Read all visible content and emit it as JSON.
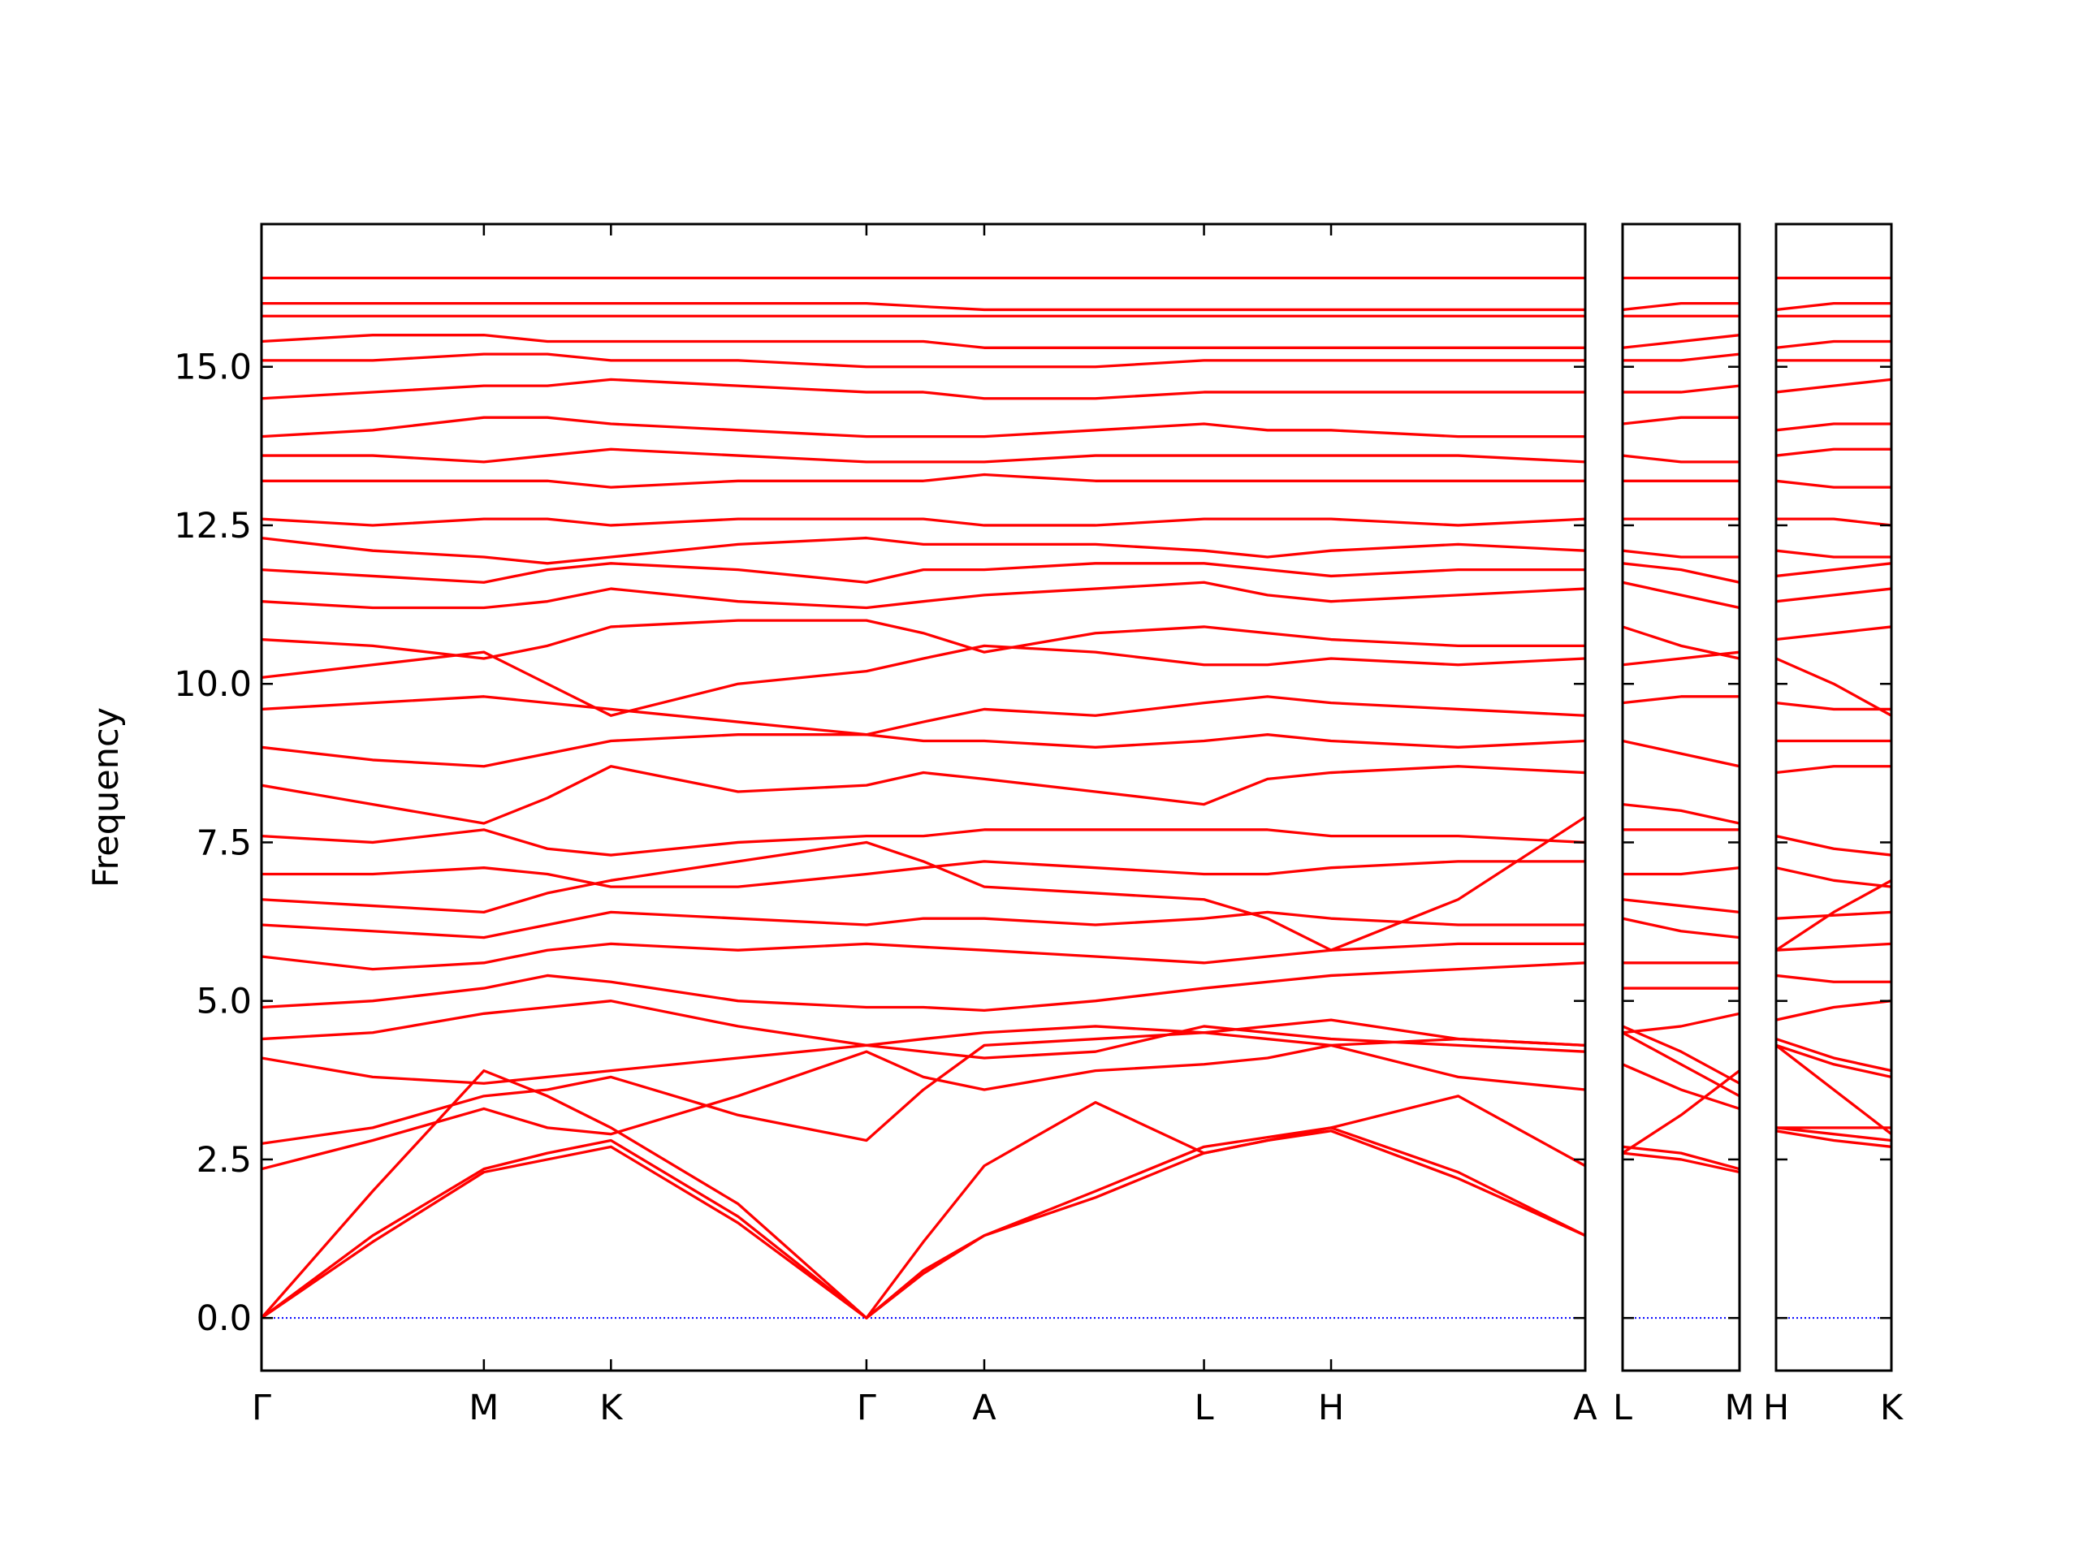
{
  "chart_data": [
    {
      "type": "line",
      "ylabel": "Frequency",
      "line_color": "#ff0000",
      "hline": 0,
      "hline_color": "#0000ff",
      "x": [
        0,
        0.84,
        1.68,
        2.16,
        2.64,
        3.6,
        4.57,
        5.0,
        5.46,
        6.3,
        7.12,
        7.6,
        8.08,
        9.04,
        10.0
      ],
      "xlim": [
        0,
        10.0
      ],
      "xticks": [
        {
          "value": 0,
          "label": "Γ"
        },
        {
          "value": 1.68,
          "label": "M"
        },
        {
          "value": 2.64,
          "label": "K"
        },
        {
          "value": 4.57,
          "label": "Γ"
        },
        {
          "value": 5.46,
          "label": "A"
        },
        {
          "value": 7.12,
          "label": "L"
        },
        {
          "value": 8.08,
          "label": "H"
        },
        {
          "value": 10.0,
          "label": "A"
        }
      ],
      "ylim": [
        -0.83,
        17.25
      ],
      "yticks": [
        {
          "value": 0,
          "label": "0.0"
        },
        {
          "value": 2.5,
          "label": "2.5"
        },
        {
          "value": 5,
          "label": "5.0"
        },
        {
          "value": 7.5,
          "label": "7.5"
        },
        {
          "value": 10,
          "label": "10.0"
        },
        {
          "value": 12.5,
          "label": "12.5"
        },
        {
          "value": 15,
          "label": "15.0"
        }
      ],
      "series": [
        {
          "values": [
            0,
            1.2,
            2.3,
            2.5,
            2.7,
            1.5,
            0,
            0.7,
            1.3,
            1.9,
            2.6,
            2.8,
            2.95,
            2.2,
            1.3
          ]
        },
        {
          "values": [
            0,
            1.3,
            2.35,
            2.6,
            2.8,
            1.6,
            0,
            0.75,
            1.3,
            2.0,
            2.7,
            2.85,
            3.0,
            2.3,
            1.3
          ]
        },
        {
          "values": [
            0,
            2.0,
            3.9,
            3.5,
            3.0,
            1.8,
            0,
            1.2,
            2.4,
            3.4,
            2.6,
            2.8,
            3.0,
            3.5,
            2.4
          ]
        },
        {
          "values": [
            2.35,
            2.8,
            3.3,
            3.0,
            2.9,
            3.5,
            4.2,
            3.8,
            3.6,
            3.9,
            4.0,
            4.1,
            4.3,
            4.4,
            4.3
          ]
        },
        {
          "values": [
            2.75,
            3.0,
            3.5,
            3.6,
            3.8,
            3.2,
            2.8,
            3.6,
            4.3,
            4.4,
            4.5,
            4.4,
            4.3,
            3.8,
            3.6
          ]
        },
        {
          "values": [
            4.1,
            3.8,
            3.7,
            3.8,
            3.9,
            4.1,
            4.3,
            4.2,
            4.1,
            4.2,
            4.6,
            4.5,
            4.4,
            4.3,
            4.2
          ]
        },
        {
          "values": [
            4.4,
            4.5,
            4.8,
            4.9,
            5.0,
            4.6,
            4.3,
            4.4,
            4.5,
            4.6,
            4.5,
            4.6,
            4.7,
            4.4,
            4.3
          ]
        },
        {
          "values": [
            4.9,
            5.0,
            5.2,
            5.4,
            5.3,
            5.0,
            4.9,
            4.9,
            4.85,
            5.0,
            5.2,
            5.3,
            5.4,
            5.5,
            5.6
          ]
        },
        {
          "values": [
            5.7,
            5.5,
            5.6,
            5.8,
            5.9,
            5.8,
            5.9,
            5.85,
            5.8,
            5.7,
            5.6,
            5.7,
            5.8,
            5.9,
            5.9
          ]
        },
        {
          "values": [
            6.2,
            6.1,
            6.0,
            6.2,
            6.4,
            6.3,
            6.2,
            6.3,
            6.3,
            6.2,
            6.3,
            6.4,
            6.3,
            6.2,
            6.2
          ]
        },
        {
          "values": [
            6.6,
            6.5,
            6.4,
            6.7,
            6.9,
            7.2,
            7.5,
            7.2,
            6.8,
            6.7,
            6.6,
            6.3,
            5.8,
            6.6,
            7.9
          ]
        },
        {
          "values": [
            7.0,
            7.0,
            7.1,
            7.0,
            6.8,
            6.8,
            7.0,
            7.1,
            7.2,
            7.1,
            7.0,
            7.0,
            7.1,
            7.2,
            7.2
          ]
        },
        {
          "values": [
            7.6,
            7.5,
            7.7,
            7.4,
            7.3,
            7.5,
            7.6,
            7.6,
            7.7,
            7.7,
            7.7,
            7.7,
            7.6,
            7.6,
            7.5
          ]
        },
        {
          "values": [
            8.4,
            8.1,
            7.8,
            8.2,
            8.7,
            8.3,
            8.4,
            8.6,
            8.5,
            8.3,
            8.1,
            8.5,
            8.6,
            8.7,
            8.6
          ]
        },
        {
          "values": [
            9.0,
            8.8,
            8.7,
            8.9,
            9.1,
            9.2,
            9.2,
            9.1,
            9.1,
            9.0,
            9.1,
            9.2,
            9.1,
            9.0,
            9.1
          ]
        },
        {
          "values": [
            9.6,
            9.7,
            9.8,
            9.7,
            9.6,
            9.4,
            9.2,
            9.4,
            9.6,
            9.5,
            9.7,
            9.8,
            9.7,
            9.6,
            9.5
          ]
        },
        {
          "values": [
            10.1,
            10.3,
            10.5,
            10.0,
            9.5,
            10.0,
            10.2,
            10.4,
            10.6,
            10.5,
            10.3,
            10.3,
            10.4,
            10.3,
            10.4
          ]
        },
        {
          "values": [
            10.7,
            10.6,
            10.4,
            10.6,
            10.9,
            11.0,
            11.0,
            10.8,
            10.5,
            10.8,
            10.9,
            10.8,
            10.7,
            10.6,
            10.6
          ]
        },
        {
          "values": [
            11.3,
            11.2,
            11.2,
            11.3,
            11.5,
            11.3,
            11.2,
            11.3,
            11.4,
            11.5,
            11.6,
            11.4,
            11.3,
            11.4,
            11.5
          ]
        },
        {
          "values": [
            11.8,
            11.7,
            11.6,
            11.8,
            11.9,
            11.8,
            11.6,
            11.8,
            11.8,
            11.9,
            11.9,
            11.8,
            11.7,
            11.8,
            11.8
          ]
        },
        {
          "values": [
            12.3,
            12.1,
            12.0,
            11.9,
            12.0,
            12.2,
            12.3,
            12.2,
            12.2,
            12.2,
            12.1,
            12.0,
            12.1,
            12.2,
            12.1
          ]
        },
        {
          "values": [
            12.6,
            12.5,
            12.6,
            12.6,
            12.5,
            12.6,
            12.6,
            12.6,
            12.5,
            12.5,
            12.6,
            12.6,
            12.6,
            12.5,
            12.6
          ]
        },
        {
          "values": [
            13.2,
            13.2,
            13.2,
            13.2,
            13.1,
            13.2,
            13.2,
            13.2,
            13.3,
            13.2,
            13.2,
            13.2,
            13.2,
            13.2,
            13.2
          ]
        },
        {
          "values": [
            13.6,
            13.6,
            13.5,
            13.6,
            13.7,
            13.6,
            13.5,
            13.5,
            13.5,
            13.6,
            13.6,
            13.6,
            13.6,
            13.6,
            13.5
          ]
        },
        {
          "values": [
            13.9,
            14.0,
            14.2,
            14.2,
            14.1,
            14.0,
            13.9,
            13.9,
            13.9,
            14.0,
            14.1,
            14.0,
            14.0,
            13.9,
            13.9
          ]
        },
        {
          "values": [
            14.5,
            14.6,
            14.7,
            14.7,
            14.8,
            14.7,
            14.6,
            14.6,
            14.5,
            14.5,
            14.6,
            14.6,
            14.6,
            14.6,
            14.6
          ]
        },
        {
          "values": [
            15.1,
            15.1,
            15.2,
            15.2,
            15.1,
            15.1,
            15.0,
            15.0,
            15.0,
            15.0,
            15.1,
            15.1,
            15.1,
            15.1,
            15.1
          ]
        },
        {
          "values": [
            15.4,
            15.5,
            15.5,
            15.4,
            15.4,
            15.4,
            15.4,
            15.4,
            15.3,
            15.3,
            15.3,
            15.3,
            15.3,
            15.3,
            15.3
          ]
        },
        {
          "values": [
            15.8,
            15.8,
            15.8,
            15.8,
            15.8,
            15.8,
            15.8,
            15.8,
            15.8,
            15.8,
            15.8,
            15.8,
            15.8,
            15.8,
            15.8
          ]
        },
        {
          "values": [
            16.0,
            16.0,
            16.0,
            16.0,
            16.0,
            16.0,
            16.0,
            15.95,
            15.9,
            15.9,
            15.9,
            15.9,
            15.9,
            15.9,
            15.9
          ]
        },
        {
          "values": [
            16.4,
            16.4,
            16.4,
            16.4,
            16.4,
            16.4,
            16.4,
            16.4,
            16.4,
            16.4,
            16.4,
            16.4,
            16.4,
            16.4,
            16.4
          ]
        }
      ]
    },
    {
      "type": "line",
      "line_color": "#ff0000",
      "hline": 0,
      "hline_color": "#0000ff",
      "x": [
        0,
        0.44,
        0.88
      ],
      "xlim": [
        0,
        0.88
      ],
      "xticks": [
        {
          "value": 0,
          "label": "L"
        },
        {
          "value": 0.88,
          "label": "M"
        }
      ],
      "ylim": [
        -0.83,
        17.25
      ],
      "yticks": [
        0,
        2.5,
        5,
        7.5,
        10,
        12.5,
        15
      ],
      "series": [
        {
          "values": [
            2.6,
            2.5,
            2.3
          ]
        },
        {
          "values": [
            2.7,
            2.6,
            2.35
          ]
        },
        {
          "values": [
            2.6,
            3.2,
            3.9
          ]
        },
        {
          "values": [
            4.0,
            3.6,
            3.3
          ]
        },
        {
          "values": [
            4.5,
            4.0,
            3.5
          ]
        },
        {
          "values": [
            4.6,
            4.2,
            3.7
          ]
        },
        {
          "values": [
            4.5,
            4.6,
            4.8
          ]
        },
        {
          "values": [
            5.2,
            5.2,
            5.2
          ]
        },
        {
          "values": [
            5.6,
            5.6,
            5.6
          ]
        },
        {
          "values": [
            6.3,
            6.1,
            6.0
          ]
        },
        {
          "values": [
            6.6,
            6.5,
            6.4
          ]
        },
        {
          "values": [
            7.0,
            7.0,
            7.1
          ]
        },
        {
          "values": [
            7.7,
            7.7,
            7.7
          ]
        },
        {
          "values": [
            8.1,
            8.0,
            7.8
          ]
        },
        {
          "values": [
            9.1,
            8.9,
            8.7
          ]
        },
        {
          "values": [
            9.7,
            9.8,
            9.8
          ]
        },
        {
          "values": [
            10.3,
            10.4,
            10.5
          ]
        },
        {
          "values": [
            10.9,
            10.6,
            10.4
          ]
        },
        {
          "values": [
            11.6,
            11.4,
            11.2
          ]
        },
        {
          "values": [
            11.9,
            11.8,
            11.6
          ]
        },
        {
          "values": [
            12.1,
            12.0,
            12.0
          ]
        },
        {
          "values": [
            12.6,
            12.6,
            12.6
          ]
        },
        {
          "values": [
            13.2,
            13.2,
            13.2
          ]
        },
        {
          "values": [
            13.6,
            13.5,
            13.5
          ]
        },
        {
          "values": [
            14.1,
            14.2,
            14.2
          ]
        },
        {
          "values": [
            14.6,
            14.6,
            14.7
          ]
        },
        {
          "values": [
            15.1,
            15.1,
            15.2
          ]
        },
        {
          "values": [
            15.3,
            15.4,
            15.5
          ]
        },
        {
          "values": [
            15.8,
            15.8,
            15.8
          ]
        },
        {
          "values": [
            15.9,
            16.0,
            16.0
          ]
        },
        {
          "values": [
            16.4,
            16.4,
            16.4
          ]
        }
      ]
    },
    {
      "type": "line",
      "line_color": "#ff0000",
      "hline": 0,
      "hline_color": "#0000ff",
      "x": [
        0,
        0.435,
        0.87
      ],
      "xlim": [
        0,
        0.87
      ],
      "xticks": [
        {
          "value": 0,
          "label": "H"
        },
        {
          "value": 0.87,
          "label": "K"
        }
      ],
      "ylim": [
        -0.83,
        17.25
      ],
      "yticks": [
        0,
        2.5,
        5,
        7.5,
        10,
        12.5,
        15
      ],
      "series": [
        {
          "values": [
            2.95,
            2.8,
            2.7
          ]
        },
        {
          "values": [
            3.0,
            2.9,
            2.8
          ]
        },
        {
          "values": [
            3.0,
            3.0,
            3.0
          ]
        },
        {
          "values": [
            4.3,
            3.6,
            2.9
          ]
        },
        {
          "values": [
            4.3,
            4.0,
            3.8
          ]
        },
        {
          "values": [
            4.4,
            4.1,
            3.9
          ]
        },
        {
          "values": [
            4.7,
            4.9,
            5.0
          ]
        },
        {
          "values": [
            5.4,
            5.3,
            5.3
          ]
        },
        {
          "values": [
            5.8,
            5.85,
            5.9
          ]
        },
        {
          "values": [
            6.3,
            6.35,
            6.4
          ]
        },
        {
          "values": [
            5.8,
            6.4,
            6.9
          ]
        },
        {
          "values": [
            7.1,
            6.9,
            6.8
          ]
        },
        {
          "values": [
            7.6,
            7.4,
            7.3
          ]
        },
        {
          "values": [
            8.6,
            8.7,
            8.7
          ]
        },
        {
          "values": [
            9.1,
            9.1,
            9.1
          ]
        },
        {
          "values": [
            9.7,
            9.6,
            9.6
          ]
        },
        {
          "values": [
            10.4,
            10.0,
            9.5
          ]
        },
        {
          "values": [
            10.7,
            10.8,
            10.9
          ]
        },
        {
          "values": [
            11.3,
            11.4,
            11.5
          ]
        },
        {
          "values": [
            11.7,
            11.8,
            11.9
          ]
        },
        {
          "values": [
            12.1,
            12.0,
            12.0
          ]
        },
        {
          "values": [
            12.6,
            12.6,
            12.5
          ]
        },
        {
          "values": [
            13.2,
            13.1,
            13.1
          ]
        },
        {
          "values": [
            13.6,
            13.7,
            13.7
          ]
        },
        {
          "values": [
            14.0,
            14.1,
            14.1
          ]
        },
        {
          "values": [
            14.6,
            14.7,
            14.8
          ]
        },
        {
          "values": [
            15.1,
            15.1,
            15.1
          ]
        },
        {
          "values": [
            15.3,
            15.4,
            15.4
          ]
        },
        {
          "values": [
            15.8,
            15.8,
            15.8
          ]
        },
        {
          "values": [
            15.9,
            16.0,
            16.0
          ]
        },
        {
          "values": [
            16.4,
            16.4,
            16.4
          ]
        }
      ]
    }
  ]
}
